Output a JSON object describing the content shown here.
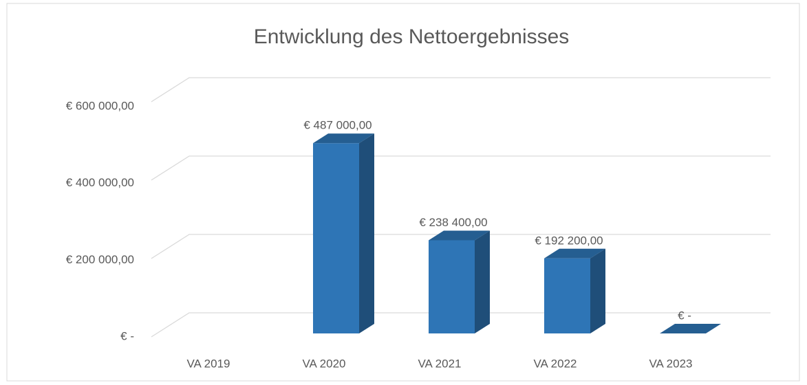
{
  "chart_data": {
    "type": "bar3d",
    "title": "Entwicklung des Nettoergebnisses",
    "categories": [
      "VA 2019",
      "VA 2020",
      "VA 2021",
      "VA 2022",
      "VA 2023"
    ],
    "values": [
      null,
      487000,
      238400,
      192200,
      0
    ],
    "value_labels": [
      null,
      "€ 487 000,00",
      "€ 238 400,00",
      "€ 192 200,00",
      "€ -"
    ],
    "color": "#2e75b6",
    "ylim": [
      0,
      600000
    ],
    "yticks": [
      {
        "value": 0,
        "label": "€ -"
      },
      {
        "value": 200000,
        "label": "€ 200 000,00"
      },
      {
        "value": 400000,
        "label": "€ 400 000,00"
      },
      {
        "value": 600000,
        "label": "€ 600 000,00"
      }
    ],
    "grid": true
  }
}
